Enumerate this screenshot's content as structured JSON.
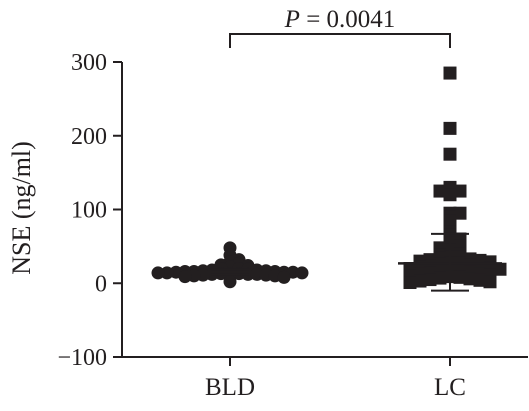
{
  "chart_data": {
    "type": "scatter",
    "title": "",
    "xlabel": "",
    "ylabel": "NSE (ng/ml)",
    "ylim": [
      -100,
      300
    ],
    "yticks": [
      -100,
      0,
      100,
      200,
      300
    ],
    "ytick_labels": [
      "−100",
      "0",
      "100",
      "200",
      "300"
    ],
    "categories": [
      "BLD",
      "LC"
    ],
    "annotation": {
      "prefix": "P",
      "suffix": " = 0.0041"
    },
    "grid": false,
    "series": [
      {
        "category": "BLD",
        "marker": "circle",
        "mean": 15,
        "error_low": 12,
        "error_high": 19,
        "points": [
          38,
          29,
          27,
          25,
          32,
          48,
          24,
          22,
          20,
          20,
          19,
          18,
          18,
          17,
          17,
          16,
          16,
          16,
          15,
          15,
          15,
          14,
          14,
          14,
          13,
          13,
          13,
          12,
          12,
          12,
          11,
          11,
          10,
          10,
          9,
          8,
          2
        ]
      },
      {
        "category": "LC",
        "marker": "square",
        "mean": 27,
        "error_low": -10,
        "error_high": 67,
        "points": [
          285,
          210,
          175,
          130,
          125,
          125,
          120,
          95,
          95,
          90,
          85,
          70,
          65,
          60,
          55,
          50,
          48,
          45,
          40,
          38,
          36,
          35,
          34,
          33,
          32,
          31,
          30,
          29,
          28,
          27,
          26,
          25,
          24,
          23,
          22,
          21,
          20,
          19,
          18,
          17,
          16,
          15,
          14,
          13,
          12,
          11,
          10,
          9,
          8,
          7,
          6,
          5,
          4,
          3,
          2,
          1
        ]
      }
    ]
  }
}
